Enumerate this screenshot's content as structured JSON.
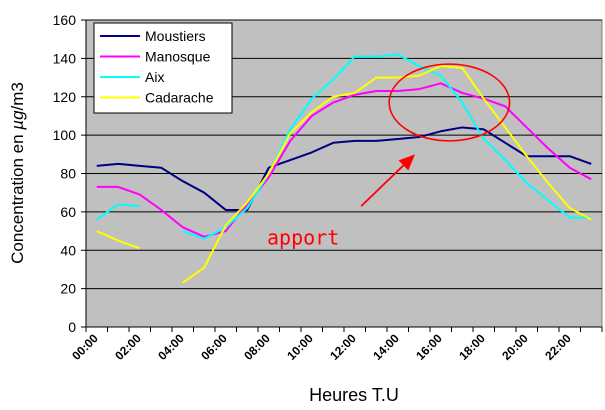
{
  "chart_data": {
    "type": "line",
    "title": "",
    "xlabel": "Heures  T.U",
    "ylabel_parts": [
      "Concentration en ",
      "µg",
      "/m3"
    ],
    "ylim": [
      0,
      160
    ],
    "yticks": [
      0,
      20,
      40,
      60,
      80,
      100,
      120,
      140,
      160
    ],
    "grid": "horizontal",
    "plot_background": "#c0c0c0",
    "legend_position": "top-left",
    "xtick_labels": [
      "00:00",
      "02:00",
      "04:00",
      "06:00",
      "08:00",
      "10:00",
      "12:00",
      "14:00",
      "16:00",
      "18:00",
      "20:00",
      "22:00"
    ],
    "x": [
      "00:00",
      "01:00",
      "02:00",
      "03:00",
      "04:00",
      "05:00",
      "06:00",
      "07:00",
      "08:00",
      "09:00",
      "10:00",
      "11:00",
      "12:00",
      "13:00",
      "14:00",
      "15:00",
      "16:00",
      "17:00",
      "18:00",
      "19:00",
      "20:00",
      "21:00",
      "22:00",
      "23:00"
    ],
    "series": [
      {
        "name": "Moustiers",
        "color": "#000080",
        "values": [
          84,
          85,
          84,
          83,
          76,
          70,
          61,
          61,
          83,
          87,
          91,
          96,
          97,
          97,
          98,
          99,
          102,
          104,
          103,
          96,
          89,
          89,
          89,
          85
        ]
      },
      {
        "name": "Manosque",
        "color": "#ff00ff",
        "values": [
          73,
          73,
          69,
          61,
          52,
          47,
          50,
          64,
          78,
          97,
          110,
          117,
          121,
          123,
          123,
          124,
          127,
          122,
          119,
          115,
          104,
          93,
          83,
          77
        ]
      },
      {
        "name": "Aix",
        "color": "#00ffff",
        "values": [
          56,
          64,
          63,
          null,
          50,
          46,
          52,
          62,
          80,
          103,
          119,
          129,
          141,
          141,
          142,
          136,
          131,
          117,
          98,
          87,
          75,
          66,
          57,
          57
        ]
      },
      {
        "name": "Cadarache",
        "color": "#ffff00",
        "values": [
          50,
          45,
          41,
          null,
          23,
          31,
          53,
          65,
          80,
          101,
          112,
          120,
          122,
          130,
          130,
          131,
          136,
          135,
          119,
          104,
          89,
          75,
          62,
          56
        ]
      }
    ],
    "annotations": [
      {
        "text": "apport",
        "color": "#ff0000",
        "x": 9.6,
        "y": 43
      }
    ],
    "highlight_ellipse": {
      "color": "#ff0000",
      "center": [
        16.4,
        117
      ],
      "radius_x": 2.8,
      "radius_y": 20
    },
    "arrow": {
      "color": "#ff0000",
      "from": [
        12.3,
        63
      ],
      "to": [
        14.8,
        90
      ]
    }
  }
}
